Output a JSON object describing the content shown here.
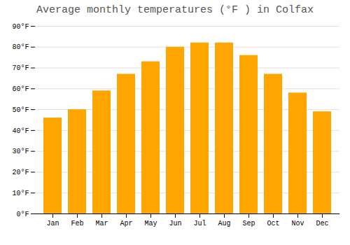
{
  "chart_data": {
    "type": "bar",
    "title": "Average monthly temperatures (°F ) in Colfax",
    "categories": [
      "Jan",
      "Feb",
      "Mar",
      "Apr",
      "May",
      "Jun",
      "Jul",
      "Aug",
      "Sep",
      "Oct",
      "Nov",
      "Dec"
    ],
    "values": [
      46,
      50,
      59,
      67,
      73,
      80,
      82,
      82,
      76,
      67,
      58,
      49
    ],
    "color": "#FFA500",
    "ylim": [
      0,
      90
    ],
    "yticks": [
      {
        "value": 0,
        "label": "0°F"
      },
      {
        "value": 10,
        "label": "10°F"
      },
      {
        "value": 20,
        "label": "20°F"
      },
      {
        "value": 30,
        "label": "30°F"
      },
      {
        "value": 40,
        "label": "40°F"
      },
      {
        "value": 50,
        "label": "50°F"
      },
      {
        "value": 60,
        "label": "60°F"
      },
      {
        "value": 70,
        "label": "70°F"
      },
      {
        "value": 80,
        "label": "80°F"
      },
      {
        "value": 90,
        "label": "90°F"
      }
    ],
    "grid": true
  }
}
